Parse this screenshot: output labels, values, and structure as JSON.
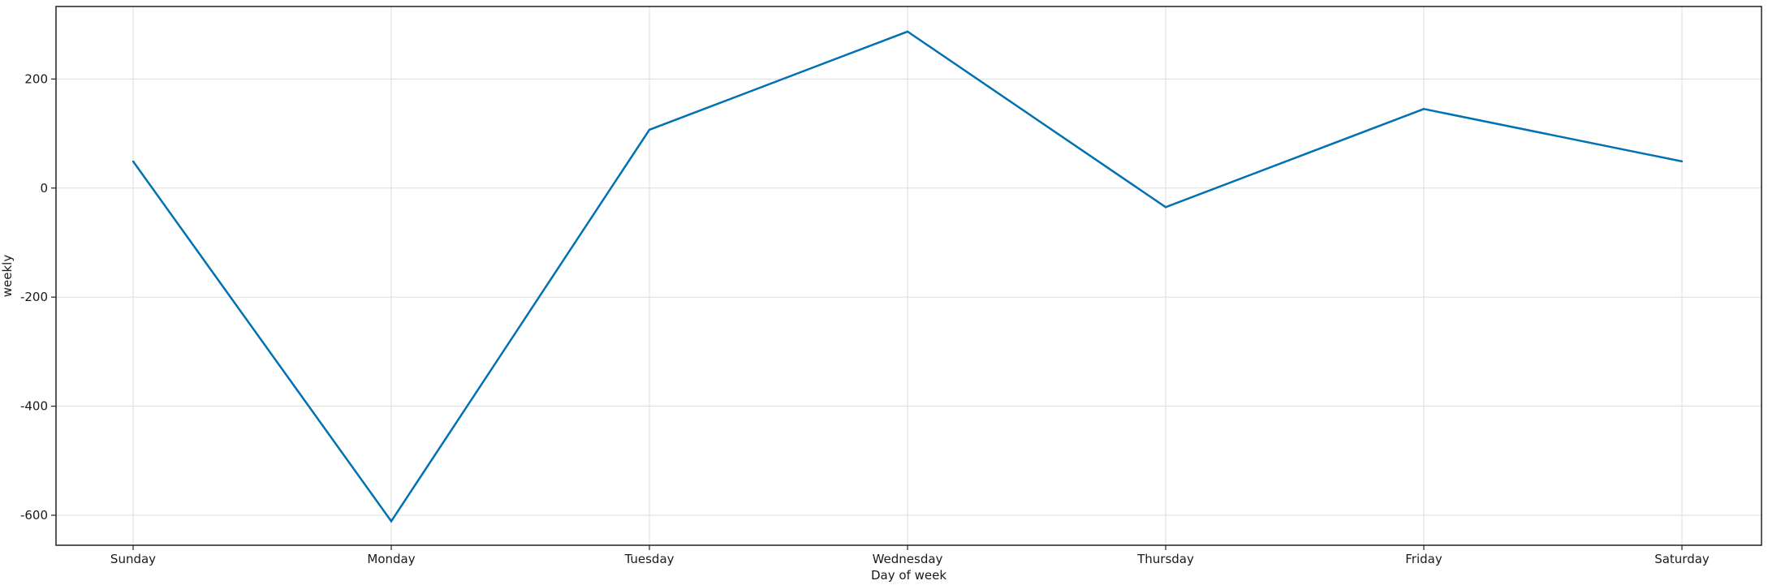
{
  "chart_data": {
    "type": "line",
    "title": "",
    "xlabel": "Day of week",
    "ylabel": "weekly",
    "categories": [
      "Sunday",
      "Monday",
      "Tuesday",
      "Wednesday",
      "Thursday",
      "Friday",
      "Saturday"
    ],
    "series": [
      {
        "name": "weekly",
        "color": "#0072B2",
        "values": [
          49,
          -611,
          107,
          287,
          -35,
          145,
          49
        ]
      }
    ],
    "yticks": [
      200,
      0,
      -200,
      -400,
      -600
    ],
    "ytick_labels": [
      "200",
      "0",
      "-200",
      "-400",
      "-600"
    ],
    "ylim": [
      -655,
      333
    ],
    "grid": true,
    "legend": "none"
  }
}
